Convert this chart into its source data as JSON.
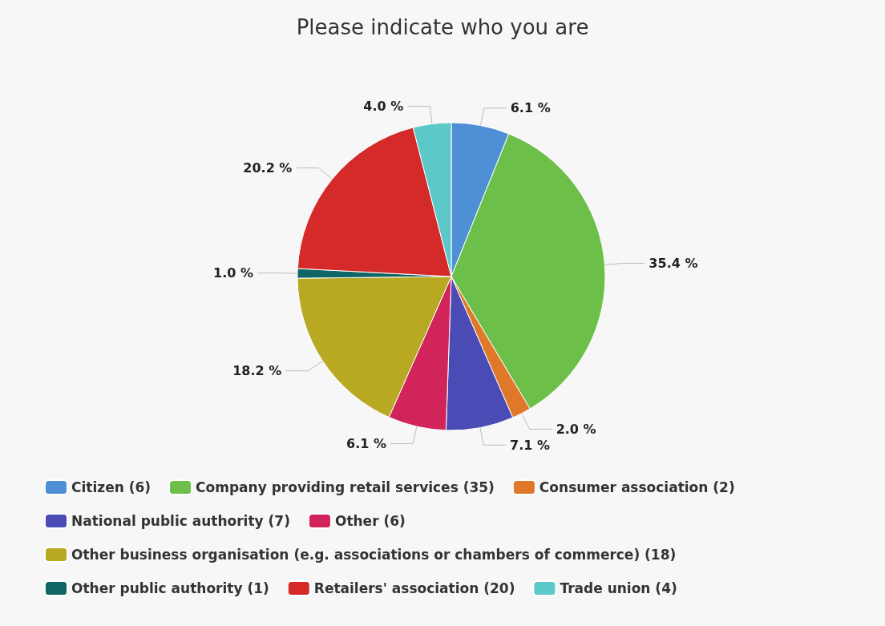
{
  "chart_data": {
    "type": "pie",
    "title": "Please indicate who you are",
    "categories": [
      "Citizen (6)",
      "Company providing retail services (35)",
      "Consumer association (2)",
      "National public authority (7)",
      "Other (6)",
      "Other business organisation (e.g. associations or chambers of commerce) (18)",
      "Other public authority (1)",
      "Retailers' association (20)",
      "Trade union (4)"
    ],
    "values": [
      6.1,
      35.4,
      2.0,
      7.1,
      6.1,
      18.2,
      1.0,
      20.2,
      4.0
    ],
    "value_labels": [
      "6.1 %",
      "35.4 %",
      "2.0 %",
      "7.1 %",
      "6.1 %",
      "18.2 %",
      "1.0 %",
      "20.2 %",
      "4.0 %"
    ],
    "colors": [
      "#4f8fd6",
      "#6cc04a",
      "#e0782a",
      "#4b4bb5",
      "#d0245a",
      "#b8a822",
      "#106565",
      "#d42a2a",
      "#5cc8c8"
    ],
    "legend": "bottom"
  }
}
